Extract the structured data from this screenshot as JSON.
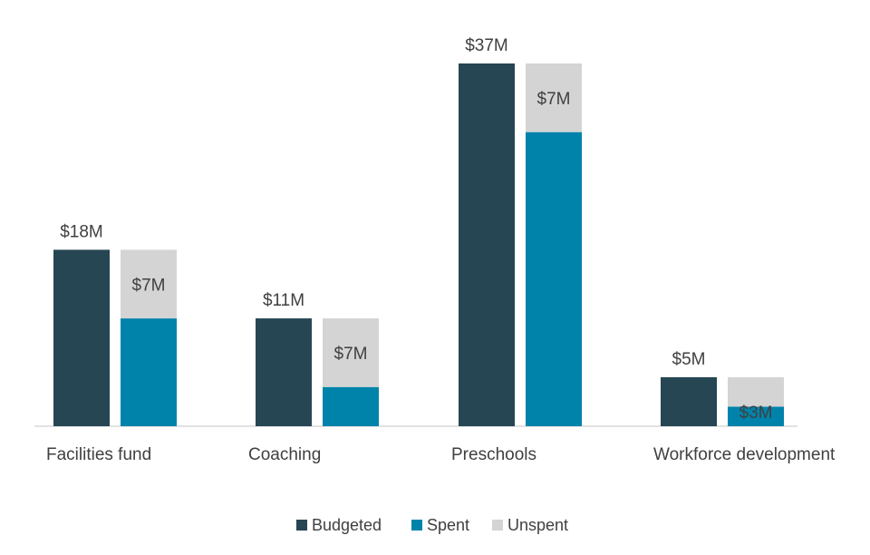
{
  "chart_data": {
    "type": "bar",
    "stacked_second_bar": true,
    "categories": [
      "Facilities fund",
      "Coaching",
      "Preschools",
      "Workforce development"
    ],
    "series": [
      {
        "name": "Budgeted",
        "values": [
          18,
          11,
          37,
          5
        ]
      },
      {
        "name": "Spent",
        "values": [
          11,
          4,
          30,
          2
        ]
      },
      {
        "name": "Unspent",
        "values": [
          7,
          7,
          7,
          3
        ]
      }
    ],
    "data_labels": {
      "budgeted": [
        "$18M",
        "$11M",
        "$37M",
        "$5M"
      ],
      "unspent": [
        "$7M",
        "$7M",
        "$7M",
        "$3M"
      ]
    },
    "ylim": [
      0,
      37
    ],
    "legend_position": "bottom",
    "grid": false,
    "colors": {
      "Budgeted": "#264653",
      "Spent": "#0083AA",
      "Unspent": "#D4D4D4"
    }
  },
  "legend": [
    {
      "label": "Budgeted",
      "color": "#264653"
    },
    {
      "label": "Spent",
      "color": "#0083AA"
    },
    {
      "label": "Unspent",
      "color": "#D4D4D4"
    }
  ]
}
